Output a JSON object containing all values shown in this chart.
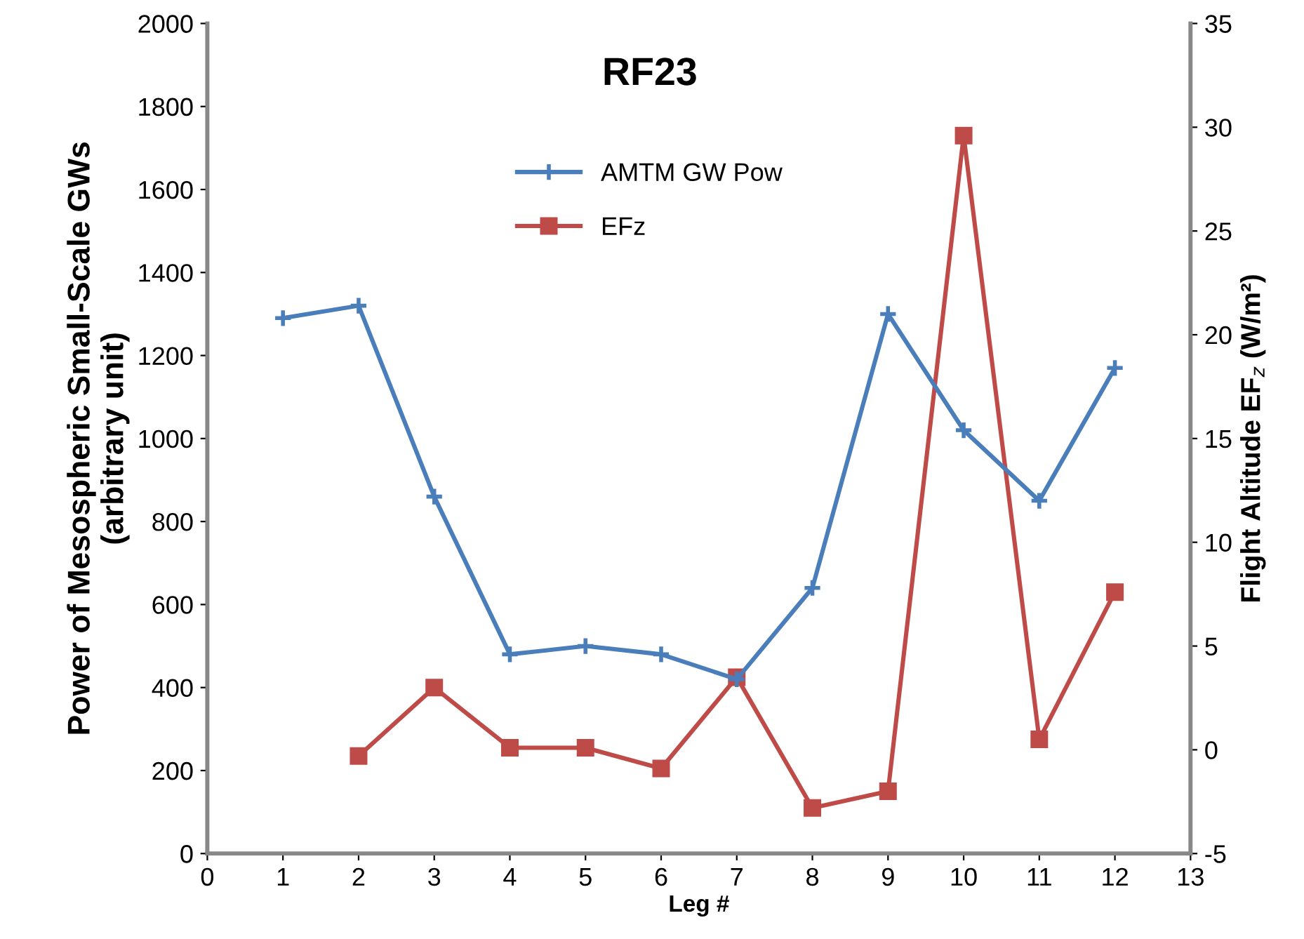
{
  "chart_data": {
    "type": "line",
    "title": "RF23",
    "xlabel": "Leg #",
    "ylabel": "Power of Mesospheric Small-Scale GWs\n(arbitrary unit)",
    "y2label": "Flight Altitude EF$_{z}$ (W/m²)",
    "x": [
      1,
      2,
      3,
      4,
      5,
      6,
      7,
      8,
      9,
      10,
      11,
      12
    ],
    "series": [
      {
        "name": "AMTM GW Pow",
        "color": "#4a7ebb",
        "marker": "cross",
        "values": [
          1290,
          1320,
          860,
          480,
          500,
          480,
          420,
          640,
          1300,
          1020,
          850,
          1170
        ]
      },
      {
        "name": "EFz",
        "color": "#be4b48",
        "marker": "square",
        "axis": "y2",
        "values": [
          null,
          -0.3,
          3.0,
          0.1,
          0.1,
          -0.9,
          3.5,
          -2.8,
          -2.0,
          29.6,
          0.5,
          7.6
        ]
      }
    ],
    "xlim": [
      0,
      13
    ],
    "xticks": [
      0,
      1,
      2,
      3,
      4,
      5,
      6,
      7,
      8,
      9,
      10,
      11,
      12,
      13
    ],
    "ylim": [
      0,
      2000
    ],
    "yticks": [
      0,
      200,
      400,
      600,
      800,
      1000,
      1200,
      1400,
      1600,
      1800,
      2000
    ],
    "y2lim": [
      -5,
      35
    ],
    "y2ticks": [
      -5,
      0,
      5,
      10,
      15,
      20,
      25,
      30,
      35
    ],
    "grid": false,
    "legend": "top",
    "line_style": "solid"
  }
}
